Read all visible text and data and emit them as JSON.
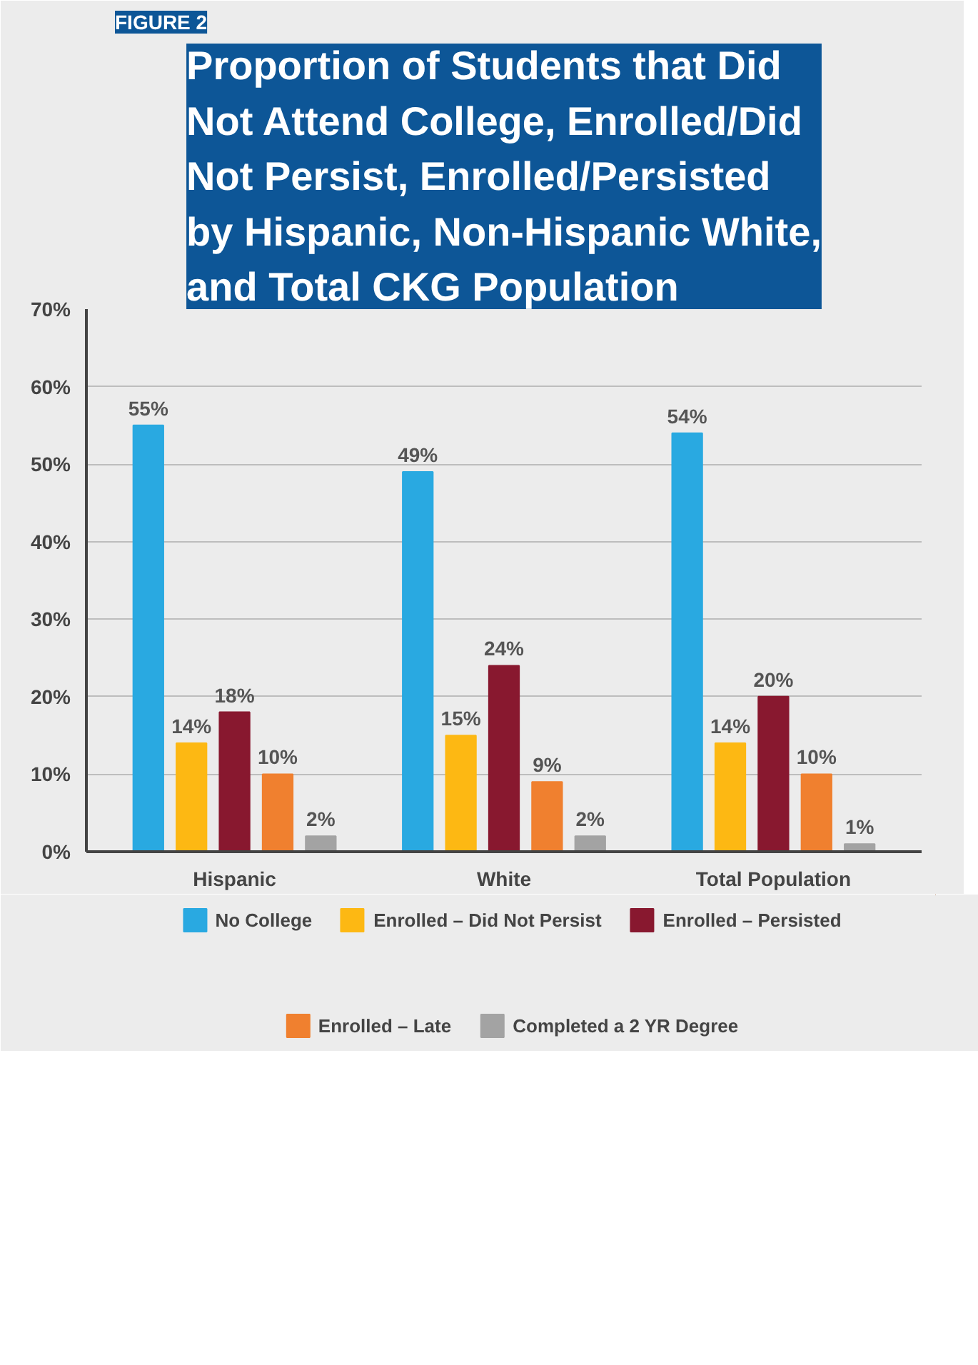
{
  "chart_data": {
    "type": "bar",
    "title": "Proportion of Students that Did Not Attend College, Enrolled/Did Not Persist, Enrolled/Persisted by Hispanic, Non-Hispanic White, and Total CKG Population",
    "annotations": [
      "FIGURE 2"
    ],
    "categories": [
      "Hispanic",
      "White",
      "Total Population"
    ],
    "series": [
      {
        "name": "No College",
        "color": "#29a9e1",
        "values": [
          55,
          49,
          54
        ],
        "value_labels": [
          "55%",
          "49%",
          "54%"
        ]
      },
      {
        "name": "Enrolled – Did Not Persist",
        "color": "#fdb813",
        "values": [
          14,
          15,
          14
        ],
        "value_labels": [
          "14%",
          "15%",
          "14%"
        ]
      },
      {
        "name": "Enrolled – Persisted",
        "color": "#88182f",
        "values": [
          18,
          24,
          20
        ],
        "value_labels": [
          "18%",
          "24%",
          "20%"
        ]
      },
      {
        "name": "Enrolled – Late",
        "color": "#f0802f",
        "values": [
          10,
          9,
          10
        ],
        "value_labels": [
          "10%",
          "9%",
          "10%"
        ]
      },
      {
        "name": "Completed a 2 YR Degree",
        "color": "#a3a3a3",
        "values": [
          2,
          2,
          1
        ],
        "value_labels": [
          "2%",
          "2%",
          "1%"
        ]
      }
    ],
    "ylim": [
      0,
      70
    ],
    "yticks": [
      {
        "value": 0,
        "label": "0%"
      },
      {
        "value": 10,
        "label": "10%"
      },
      {
        "value": 20,
        "label": "20%"
      },
      {
        "value": 30,
        "label": "30%"
      },
      {
        "value": 40,
        "label": "40%"
      },
      {
        "value": 50,
        "label": "50%"
      },
      {
        "value": 60,
        "label": "60%"
      },
      {
        "value": 70,
        "label": "70%"
      }
    ],
    "grid": "y",
    "legend": "bottom"
  }
}
